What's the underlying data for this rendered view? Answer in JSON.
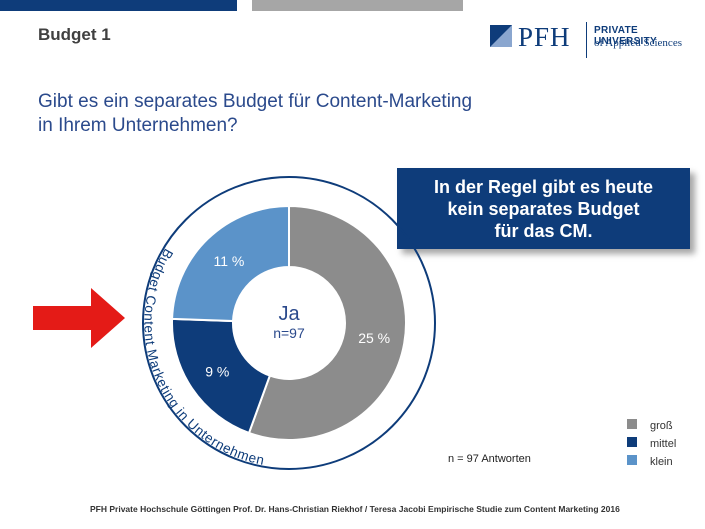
{
  "slide": {
    "label": "Budget 1"
  },
  "logo": {
    "mark_icon": "pfh-square-logo-icon",
    "name": "PFH",
    "line1": "PRIVATE UNIVERSITY",
    "line2": "of Applied Sciences"
  },
  "question": {
    "line1": "Gibt es ein separates Budget für Content-Marketing",
    "line2": "in Ihrem Unternehmen?"
  },
  "callout": {
    "line1": "In der Regel gibt es heute",
    "line2": "kein separates Budget",
    "line3": "für das CM."
  },
  "arrow": {
    "icon": "right-arrow-icon",
    "color": "#e41b17"
  },
  "chart_data": {
    "type": "pie",
    "variant": "donut",
    "center_label": "Ja",
    "center_sublabel": "n=97",
    "ring_label": "Budget Content Marketing in Unternehmen",
    "slices": [
      {
        "name": "groß",
        "value": 25,
        "label": "25 %",
        "color": "#8c8c8c"
      },
      {
        "name": "mittel",
        "value": 9,
        "label": "9 %",
        "color": "#0e3c7a"
      },
      {
        "name": "klein",
        "value": 11,
        "label": "11 %",
        "color": "#5b93c9"
      }
    ],
    "legend_position": "bottom-right"
  },
  "note": "n = 97 Antworten",
  "footer": "PFH Private Hochschule Göttingen Prof. Dr. Hans-Christian Riekhof / Teresa Jacobi Empirische Studie zum Content Marketing 2016"
}
